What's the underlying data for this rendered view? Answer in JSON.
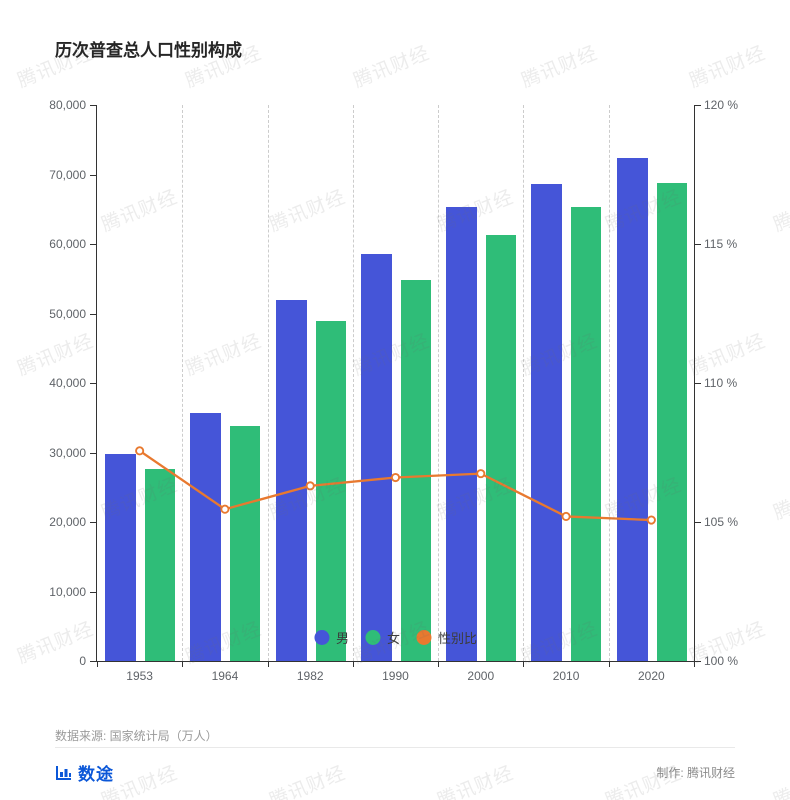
{
  "title": "历次普查总人口性别构成",
  "watermark": {
    "text": "腾讯财经"
  },
  "chart_data": {
    "type": "bar+line",
    "title": "历次普查总人口性别构成",
    "categories": [
      "1953",
      "1964",
      "1982",
      "1990",
      "2000",
      "2010",
      "2020"
    ],
    "series": [
      {
        "name": "男",
        "type": "bar",
        "color": "#4555d8",
        "axis": "left",
        "values": [
          29788,
          35652,
          51944,
          58495,
          65355,
          68685,
          72334
        ]
      },
      {
        "name": "女",
        "type": "bar",
        "color": "#2fbd78",
        "axis": "left",
        "values": [
          27694,
          33806,
          48874,
          54873,
          61228,
          65287,
          68844
        ]
      },
      {
        "name": "性别比",
        "type": "line",
        "color": "#e8792f",
        "axis": "right",
        "values": [
          107.56,
          105.46,
          106.3,
          106.6,
          106.74,
          105.2,
          105.07
        ]
      }
    ],
    "left_axis": {
      "min": 0,
      "max": 80000,
      "step": 10000,
      "tick_labels": [
        "0",
        "10,000",
        "20,000",
        "30,000",
        "40,000",
        "50,000",
        "60,000",
        "70,000",
        "80,000"
      ]
    },
    "right_axis": {
      "min": 100,
      "max": 120,
      "step": 5,
      "tick_labels": [
        "100 %",
        "105 %",
        "110 %",
        "115 %",
        "120 %"
      ]
    },
    "grid": "vertical-dashed",
    "legend_position": "bottom-center-inside",
    "unit": "万人"
  },
  "footer": {
    "source": "数据来源: 国家统计局（万人）",
    "credit": "制作: 腾讯财经",
    "logo_text": "数途"
  }
}
